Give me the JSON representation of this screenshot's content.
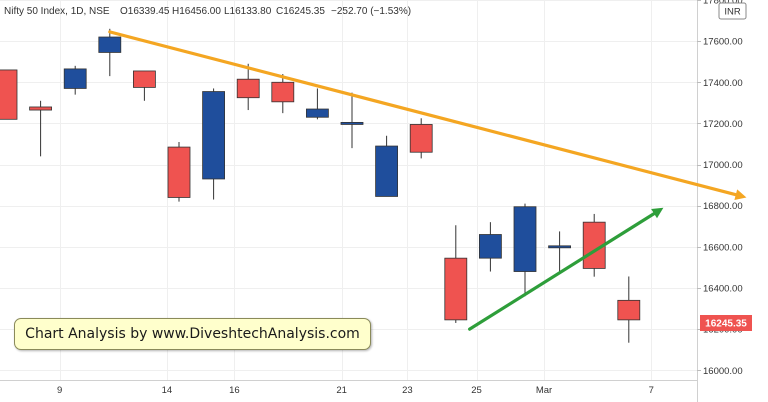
{
  "header": {
    "symbol": "Nifty 50 Index, 1D, NSE",
    "open": "O16339.45",
    "high": "H16456.00",
    "low": "L16133.80",
    "close": "C16245.35",
    "change": "−252.70 (−1.53%)"
  },
  "currency": "INR",
  "last_price_label": "16245.35",
  "watermark": "Chart Analysis by www.DiveshtechAnalysis.com",
  "colors": {
    "bull": "#1f4e9c",
    "bear": "#ef5350",
    "resistance": "#f4a622",
    "support": "#2e9e3a"
  },
  "chart_data": {
    "type": "candlestick",
    "ylim": [
      15960,
      17800
    ],
    "y_ticks": [
      16000,
      16200,
      16400,
      16600,
      16800,
      17000,
      17200,
      17400,
      17600,
      17800
    ],
    "y_tick_labels": [
      "16000.00",
      "16200.00",
      "16400.00",
      "16600.00",
      "16800.00",
      "17000.00",
      "17200.00",
      "17400.00",
      "17600.00",
      "17800.00"
    ],
    "x_ticks": [
      {
        "label": "9",
        "slot": 1.55
      },
      {
        "label": "14",
        "slot": 4.65
      },
      {
        "label": "16",
        "slot": 6.6
      },
      {
        "label": "21",
        "slot": 9.7
      },
      {
        "label": "23",
        "slot": 11.6
      },
      {
        "label": "25",
        "slot": 13.6
      },
      {
        "label": "Mar",
        "slot": 15.55
      },
      {
        "label": "7",
        "slot": 18.65
      }
    ],
    "candles": [
      {
        "slot": 0,
        "open": 17460,
        "high": 17460,
        "low": 17220,
        "close": 17220
      },
      {
        "slot": 1,
        "open": 17280,
        "high": 17310,
        "low": 17040,
        "close": 17265
      },
      {
        "slot": 2,
        "open": 17370,
        "high": 17480,
        "low": 17340,
        "close": 17465
      },
      {
        "slot": 3,
        "open": 17545,
        "high": 17660,
        "low": 17430,
        "close": 17620
      },
      {
        "slot": 4,
        "open": 17455,
        "high": 17455,
        "low": 17310,
        "close": 17375
      },
      {
        "slot": 5,
        "open": 17085,
        "high": 17110,
        "low": 16820,
        "close": 16840
      },
      {
        "slot": 6,
        "open": 16930,
        "high": 17370,
        "low": 16830,
        "close": 17355
      },
      {
        "slot": 7,
        "open": 17415,
        "high": 17490,
        "low": 17265,
        "close": 17325
      },
      {
        "slot": 8,
        "open": 17400,
        "high": 17440,
        "low": 17250,
        "close": 17305
      },
      {
        "slot": 9,
        "open": 17230,
        "high": 17370,
        "low": 17220,
        "close": 17270
      },
      {
        "slot": 10,
        "open": 17195,
        "high": 17350,
        "low": 17080,
        "close": 17205
      },
      {
        "slot": 11,
        "open": 16845,
        "high": 17140,
        "low": 16845,
        "close": 17090
      },
      {
        "slot": 12,
        "open": 17195,
        "high": 17225,
        "low": 17030,
        "close": 17060
      },
      {
        "slot": 13,
        "open": 16545,
        "high": 16705,
        "low": 16230,
        "close": 16245
      },
      {
        "slot": 14,
        "open": 16545,
        "high": 16720,
        "low": 16480,
        "close": 16660
      },
      {
        "slot": 15,
        "open": 16480,
        "high": 16810,
        "low": 16360,
        "close": 16795
      },
      {
        "slot": 16,
        "open": 16605,
        "high": 16675,
        "low": 16475,
        "close": 16605
      },
      {
        "slot": 17,
        "open": 16720,
        "high": 16760,
        "low": 16455,
        "close": 16495
      },
      {
        "slot": 18,
        "open": 16340,
        "high": 16456,
        "low": 16134,
        "close": 16245
      }
    ],
    "trendlines": [
      {
        "name": "resistance",
        "from": {
          "slot": 3,
          "price": 17645
        },
        "to": {
          "slot": 21.4,
          "price": 16840
        },
        "arrow": true
      },
      {
        "name": "support",
        "from": {
          "slot": 13.4,
          "price": 16200
        },
        "to": {
          "slot": 19,
          "price": 16790
        },
        "arrow": true
      }
    ]
  }
}
